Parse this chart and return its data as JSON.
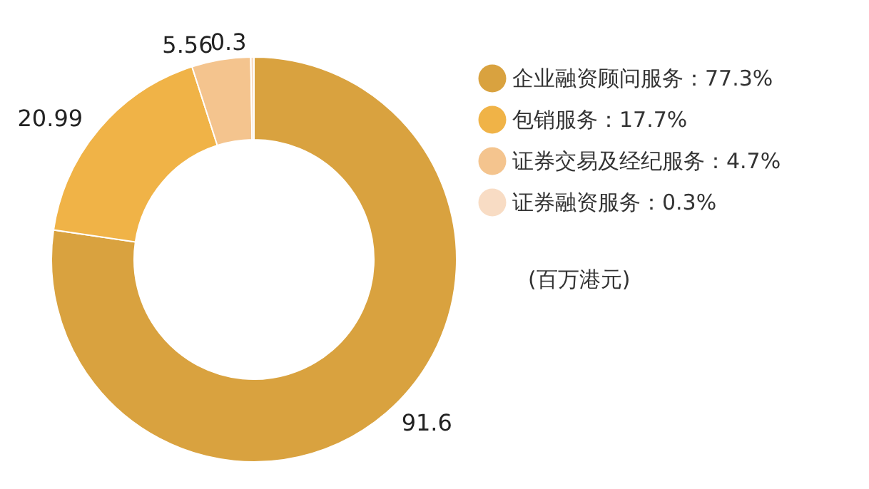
{
  "chart_data": {
    "type": "donut",
    "categories": [
      "企业融资顾问服务：77.3%",
      "包销服务：17.7%",
      "证券交易及经纪服务：4.7%",
      "证券融资服务：0.3%"
    ],
    "values": [
      91.6,
      20.99,
      5.56,
      0.3
    ],
    "colors": [
      "#d9a23f",
      "#f0b347",
      "#f4c48e",
      "#f8dcc4"
    ],
    "data_labels": true,
    "legend": "right",
    "annotations": [
      "(百万港元)"
    ]
  }
}
